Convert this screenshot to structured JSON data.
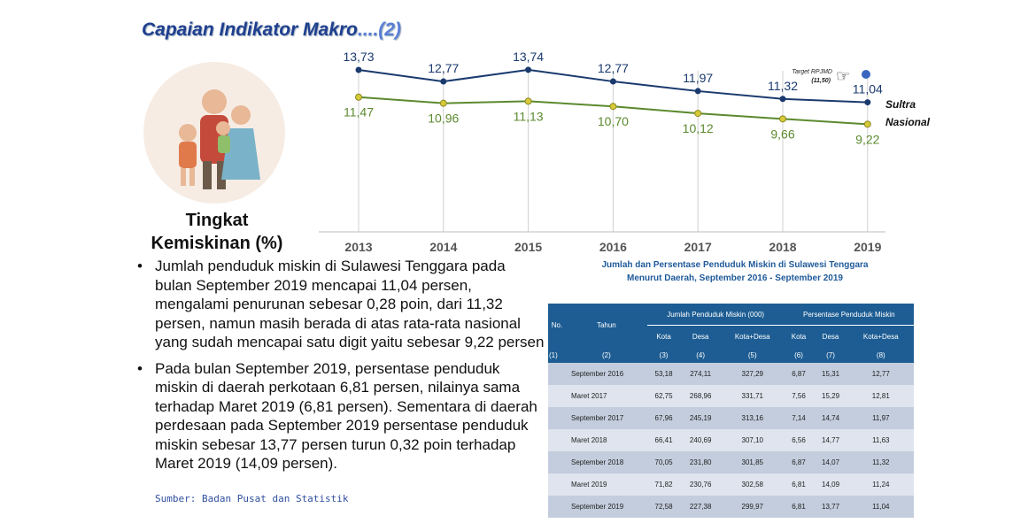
{
  "title": {
    "main": "Capaian Indikator Makro",
    "num": "....(2)"
  },
  "heading": [
    "Tingkat",
    "Kemiskinan (%)"
  ],
  "bullets": [
    "Jumlah penduduk miskin di Sulawesi Tenggara pada bulan September 2019 mencapai 11,04 persen, mengalami penurunan sebesar 0,28 poin, dari 11,32 persen, namun masih berada di atas rata-rata nasional yang sudah mencapai satu digit yaitu sebesar 9,22 persen",
    "Pada bulan September 2019, persentase penduduk miskin di daerah perkotaan 6,81 persen, nilainya sama terhadap Maret 2019 (6,81 persen). Sementara di daerah perdesaan pada September 2019 persentase penduduk miskin sebesar 13,77 persen turun 0,32 poin terhadap Maret 2019 (14,09 persen)."
  ],
  "source": "Sumber: Badan Pusat dan Statistik",
  "chart_data": {
    "type": "line",
    "categories": [
      "2013",
      "2014",
      "2015",
      "2016",
      "2017",
      "2018",
      "2019"
    ],
    "series": [
      {
        "name": "Sultra",
        "color": "#1a3a6e",
        "values": [
          13.73,
          12.77,
          13.74,
          12.77,
          11.97,
          11.32,
          11.04
        ],
        "labels": [
          "13,73",
          "12,77",
          "13,74",
          "12,77",
          "11,97",
          "11,32",
          "11,04"
        ]
      },
      {
        "name": "Nasional",
        "color": "#5b8a2e",
        "values": [
          11.47,
          10.96,
          11.13,
          10.7,
          10.12,
          9.66,
          9.22
        ],
        "labels": [
          "11,47",
          "10,96",
          "11,13",
          "10,70",
          "10,12",
          "9,66",
          "9,22"
        ]
      }
    ],
    "annotation": {
      "text": "Target RPJMD",
      "value_label": "(11,50)",
      "value": 11.5
    }
  },
  "table": {
    "caption": [
      "Jumlah dan Persentase Penduduk Miskin di Sulawesi Tenggara",
      "Menurut Daerah, September 2016 - September 2019"
    ],
    "h_no": "No.",
    "h_tahun": "Tahun",
    "h_jumlah": "Jumlah Penduduk Miskin (000)",
    "h_persen": "Persentase Penduduk Miskin",
    "sub": [
      "Kota",
      "Desa",
      "Kota+Desa",
      "Kota",
      "Desa",
      "Kota+Desa"
    ],
    "nums": [
      "(1)",
      "(2)",
      "(3)",
      "(4)",
      "(5)",
      "(6)",
      "(7)",
      "(8)"
    ],
    "rows": [
      [
        "September 2016",
        "53,18",
        "274,11",
        "327,29",
        "6,87",
        "15,31",
        "12,77"
      ],
      [
        "Maret 2017",
        "62,75",
        "268,96",
        "331,71",
        "7,56",
        "15,29",
        "12,81"
      ],
      [
        "September 2017",
        "67,96",
        "245,19",
        "313,16",
        "7,14",
        "14,74",
        "11,97"
      ],
      [
        "Maret 2018",
        "66,41",
        "240,69",
        "307,10",
        "6,56",
        "14,77",
        "11,63"
      ],
      [
        "September 2018",
        "70,05",
        "231,80",
        "301,85",
        "6,87",
        "14,07",
        "11,32"
      ],
      [
        "Maret 2019",
        "71,82",
        "230,76",
        "302,58",
        "6,81",
        "14,09",
        "11,24"
      ],
      [
        "September 2019",
        "72,58",
        "227,38",
        "299,97",
        "6,81",
        "13,77",
        "11,04"
      ]
    ]
  }
}
